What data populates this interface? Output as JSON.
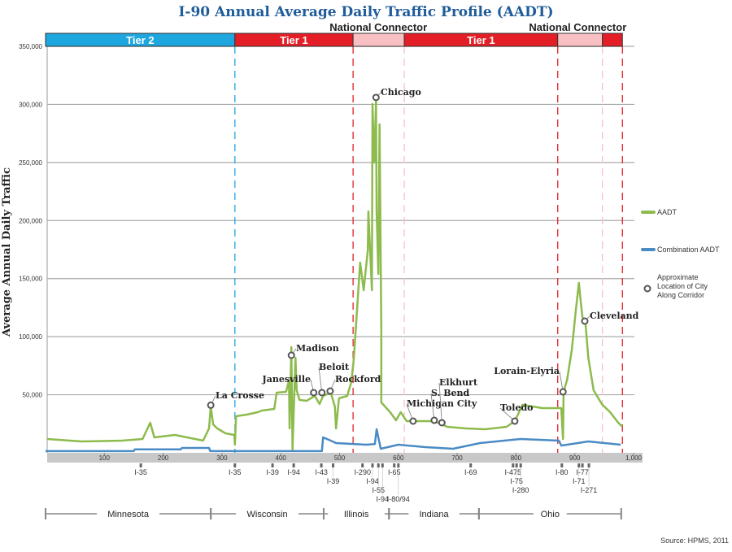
{
  "chart_data": {
    "type": "line",
    "title": "I-90 Annual Average Daily Traffic Profile (AADT)",
    "ylabel": "Average Annual Daily Traffic",
    "xlabel": "",
    "xlim": [
      0,
      1000
    ],
    "ylim": [
      0,
      350000
    ],
    "x_ticks": [
      "100",
      "200",
      "300",
      "400",
      "500",
      "600",
      "700",
      "800",
      "900",
      "1,000"
    ],
    "x_tick_values": [
      100,
      200,
      300,
      400,
      500,
      600,
      700,
      800,
      900,
      1000
    ],
    "y_ticks": [
      "50,000",
      "100,000",
      "150,000",
      "200,000",
      "250,000",
      "300,000",
      "350,000"
    ],
    "y_tick_values": [
      50000,
      100000,
      150000,
      200000,
      250000,
      300000,
      350000
    ],
    "grid": true,
    "legend_position": "right",
    "legend": [
      "AADT",
      "Combination AADT",
      "Approximate Location of City Along Corridor"
    ],
    "colors": {
      "aadt": "#8dbb4d",
      "combination": "#4a8bc4",
      "tier2": "#1ea6de",
      "tier1": "#e31e26",
      "connector": "#f9c0c4",
      "title": "#1f5c99"
    },
    "series": [
      {
        "name": "AADT",
        "points": [
          [
            3,
            11900
          ],
          [
            61,
            9800
          ],
          [
            130,
            10500
          ],
          [
            165,
            11900
          ],
          [
            178,
            25900
          ],
          [
            185,
            13300
          ],
          [
            220,
            15400
          ],
          [
            268,
            10500
          ],
          [
            278,
            21000
          ],
          [
            281,
            39900
          ],
          [
            285,
            24500
          ],
          [
            292,
            21000
          ],
          [
            306,
            16800
          ],
          [
            321,
            15400
          ],
          [
            322,
            7000
          ],
          [
            324,
            31500
          ],
          [
            342,
            32900
          ],
          [
            361,
            35000
          ],
          [
            368,
            36400
          ],
          [
            389,
            37800
          ],
          [
            393,
            51800
          ],
          [
            409,
            52500
          ],
          [
            414,
            62300
          ],
          [
            415,
            21000
          ],
          [
            418,
            91000
          ],
          [
            420,
            2800
          ],
          [
            425,
            81900
          ],
          [
            427,
            53900
          ],
          [
            432,
            45500
          ],
          [
            444,
            44800
          ],
          [
            458,
            49000
          ],
          [
            466,
            42000
          ],
          [
            472,
            49000
          ],
          [
            485,
            51800
          ],
          [
            492,
            39900
          ],
          [
            494,
            21000
          ],
          [
            499,
            46900
          ],
          [
            513,
            49000
          ],
          [
            520,
            60900
          ],
          [
            524,
            79800
          ],
          [
            528,
            109900
          ],
          [
            535,
            163800
          ],
          [
            541,
            140000
          ],
          [
            548,
            174300
          ],
          [
            549,
            207900
          ],
          [
            555,
            140000
          ],
          [
            556,
            300300
          ],
          [
            559,
            249900
          ],
          [
            562,
            302400
          ],
          [
            563,
            207900
          ],
          [
            566,
            154000
          ],
          [
            568,
            282800
          ],
          [
            571,
            104300
          ],
          [
            571,
            43400
          ],
          [
            586,
            35000
          ],
          [
            596,
            28000
          ],
          [
            604,
            35000
          ],
          [
            614,
            27300
          ],
          [
            625,
            27300
          ],
          [
            660,
            27300
          ],
          [
            674,
            24500
          ],
          [
            683,
            22400
          ],
          [
            715,
            21000
          ],
          [
            748,
            20300
          ],
          [
            784,
            22400
          ],
          [
            798,
            27300
          ],
          [
            811,
            41300
          ],
          [
            845,
            38500
          ],
          [
            877,
            38500
          ],
          [
            880,
            11900
          ],
          [
            881,
            52500
          ],
          [
            887,
            63000
          ],
          [
            895,
            88900
          ],
          [
            902,
            123900
          ],
          [
            907,
            146300
          ],
          [
            910,
            130900
          ],
          [
            913,
            116900
          ],
          [
            918,
            112700
          ],
          [
            923,
            81900
          ],
          [
            932,
            53900
          ],
          [
            946,
            42000
          ],
          [
            960,
            35000
          ],
          [
            974,
            25900
          ],
          [
            981,
            22400
          ]
        ]
      },
      {
        "name": "Combination AADT",
        "points": [
          [
            0,
            1500
          ],
          [
            150,
            1500
          ],
          [
            152,
            3000
          ],
          [
            230,
            3000
          ],
          [
            232,
            4200
          ],
          [
            278,
            4200
          ],
          [
            280,
            1500
          ],
          [
            470,
            1500
          ],
          [
            472,
            13300
          ],
          [
            485,
            10500
          ],
          [
            494,
            8400
          ],
          [
            545,
            7000
          ],
          [
            560,
            7500
          ],
          [
            563,
            20300
          ],
          [
            570,
            3500
          ],
          [
            600,
            7000
          ],
          [
            646,
            4900
          ],
          [
            693,
            3500
          ],
          [
            739,
            8400
          ],
          [
            808,
            11900
          ],
          [
            873,
            10500
          ],
          [
            877,
            6300
          ],
          [
            887,
            7000
          ],
          [
            923,
            9800
          ],
          [
            978,
            7000
          ]
        ]
      }
    ],
    "cities": [
      {
        "name": "La Crosse",
        "mile": 281,
        "aadt": 41000
      },
      {
        "name": "Madison",
        "mile": 418,
        "aadt": 84000
      },
      {
        "name": "Janesville",
        "mile": 456,
        "aadt": 51800
      },
      {
        "name": "Beloit",
        "mile": 470,
        "aadt": 51800
      },
      {
        "name": "Rockford",
        "mile": 484,
        "aadt": 53200
      },
      {
        "name": "Chicago",
        "mile": 562,
        "aadt": 306000
      },
      {
        "name": "Michigan City",
        "mile": 625,
        "aadt": 27300
      },
      {
        "name": "S. Bend",
        "mile": 661,
        "aadt": 28000
      },
      {
        "name": "Elkhurt",
        "mile": 674,
        "aadt": 25900
      },
      {
        "name": "Toledo",
        "mile": 798,
        "aadt": 27300
      },
      {
        "name": "Lorain-Elyria",
        "mile": 880,
        "aadt": 52500
      },
      {
        "name": "Cleveland",
        "mile": 917,
        "aadt": 113400
      }
    ],
    "tiers": [
      {
        "label": "Tier 2",
        "type": "tier2",
        "start": 0,
        "end": 322
      },
      {
        "label": "Tier 1",
        "type": "tier1",
        "start": 322,
        "end": 523
      },
      {
        "label": "",
        "type": "connector",
        "start": 523,
        "end": 610
      },
      {
        "label": "Tier 1",
        "type": "tier1",
        "start": 610,
        "end": 871
      },
      {
        "label": "",
        "type": "connector",
        "start": 871,
        "end": 947
      },
      {
        "label": "",
        "type": "tier1",
        "start": 947,
        "end": 981
      }
    ],
    "connector_labels": [
      {
        "label": "National Connector",
        "mile": 566
      },
      {
        "label": "National Connector",
        "mile": 905
      }
    ],
    "boundaries": [
      {
        "mile": 322,
        "type": "tier2"
      },
      {
        "mile": 523,
        "type": "tier1"
      },
      {
        "mile": 610,
        "type": "connector"
      },
      {
        "mile": 871,
        "type": "tier1"
      },
      {
        "mile": 947,
        "type": "connector"
      },
      {
        "mile": 981,
        "type": "tier1"
      }
    ],
    "interchanges": [
      {
        "label": "I-35",
        "mile": 162
      },
      {
        "label": "I-35",
        "mile": 322
      },
      {
        "label": "I-39",
        "mile": 386
      },
      {
        "label": "I-94",
        "mile": 422
      },
      {
        "label": "I-43",
        "mile": 469
      },
      {
        "label": "I-39",
        "mile": 489
      },
      {
        "label": "I-290",
        "mile": 539
      },
      {
        "label": "I-94",
        "mile": 556
      },
      {
        "label": "I-55",
        "mile": 566
      },
      {
        "label": "I-94",
        "mile": 573
      },
      {
        "label": "I-65",
        "mile": 593
      },
      {
        "label": "I-80/94",
        "mile": 600
      },
      {
        "label": "I-69",
        "mile": 723
      },
      {
        "label": "I-475",
        "mile": 795
      },
      {
        "label": "I-75",
        "mile": 801
      },
      {
        "label": "I-280",
        "mile": 808
      },
      {
        "label": "I-80",
        "mile": 878
      },
      {
        "label": "I-71",
        "mile": 907
      },
      {
        "label": "I-77",
        "mile": 913
      },
      {
        "label": "I-271",
        "mile": 924
      }
    ],
    "states": [
      {
        "name": "Minnesota",
        "start": 0,
        "end": 281
      },
      {
        "name": "Wisconsin",
        "start": 281,
        "end": 473
      },
      {
        "name": "Illinois",
        "start": 473,
        "end": 584
      },
      {
        "name": "Indiana",
        "start": 584,
        "end": 737
      },
      {
        "name": "Ohio",
        "start": 737,
        "end": 979
      }
    ],
    "source": "Source: HPMS, 2011"
  }
}
